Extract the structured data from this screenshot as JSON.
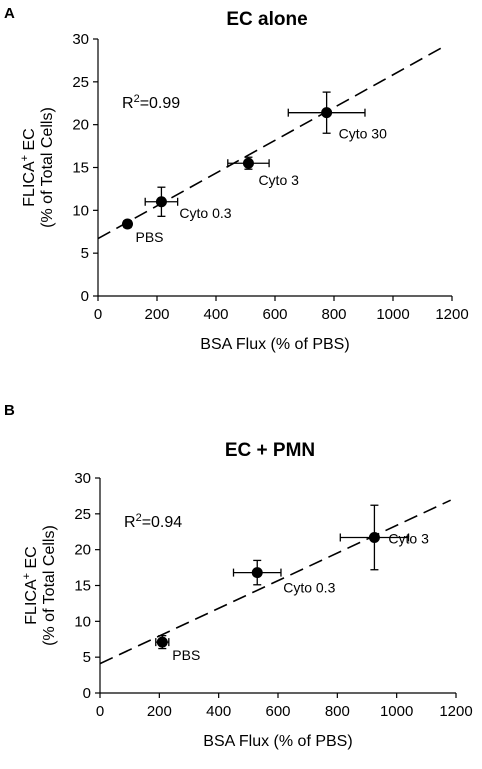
{
  "chart_data": [
    {
      "type": "scatter",
      "panel_label": "A",
      "title": "EC alone",
      "xlabel": "BSA Flux (% of PBS)",
      "ylabel_line1": "FLICA",
      "ylabel_sup": "+",
      "ylabel_line1_suffix": " EC",
      "ylabel_line2": "(% of Total Cells)",
      "xlim": [
        0,
        1200
      ],
      "ylim": [
        0,
        30
      ],
      "xticks": [
        0,
        200,
        400,
        600,
        800,
        1000,
        1200
      ],
      "yticks": [
        0,
        5,
        10,
        15,
        20,
        25,
        30
      ],
      "r2_prefix": "R",
      "r2_sup": "2",
      "r2_value": "=0.99",
      "points": [
        {
          "label": "PBS",
          "x": 100,
          "y": 8.4,
          "xerr": 12,
          "yerr": 0.4
        },
        {
          "label": "Cyto 0.3",
          "x": 215,
          "y": 11.0,
          "xerr": 55,
          "yerr": 1.7
        },
        {
          "label": "Cyto 3",
          "x": 510,
          "y": 15.5,
          "xerr": 70,
          "yerr": 0.7
        },
        {
          "label": "Cyto 30",
          "x": 775,
          "y": 21.4,
          "xerr": 130,
          "yerr": 2.4
        }
      ],
      "fit": {
        "slope": 0.01912,
        "intercept": 6.7
      }
    },
    {
      "type": "scatter",
      "panel_label": "B",
      "title": "EC + PMN",
      "xlabel": "BSA Flux (% of PBS)",
      "ylabel_line1": "FLICA",
      "ylabel_sup": "+",
      "ylabel_line1_suffix": " EC",
      "ylabel_line2": "(% of Total Cells)",
      "xlim": [
        0,
        1200
      ],
      "ylim": [
        0,
        30
      ],
      "xticks": [
        0,
        200,
        400,
        600,
        800,
        1000,
        1200
      ],
      "yticks": [
        0,
        5,
        10,
        15,
        20,
        25,
        30
      ],
      "r2_prefix": "R",
      "r2_sup": "2",
      "r2_value": "=0.94",
      "points": [
        {
          "label": "PBS",
          "x": 210,
          "y": 7.1,
          "xerr": 22,
          "yerr": 0.9
        },
        {
          "label": "Cyto 0.3",
          "x": 530,
          "y": 16.8,
          "xerr": 80,
          "yerr": 1.7
        },
        {
          "label": "Cyto 3",
          "x": 925,
          "y": 21.7,
          "xerr": 115,
          "yerr": 4.5
        }
      ],
      "fit": {
        "slope": 0.01929,
        "intercept": 4.1
      }
    }
  ]
}
